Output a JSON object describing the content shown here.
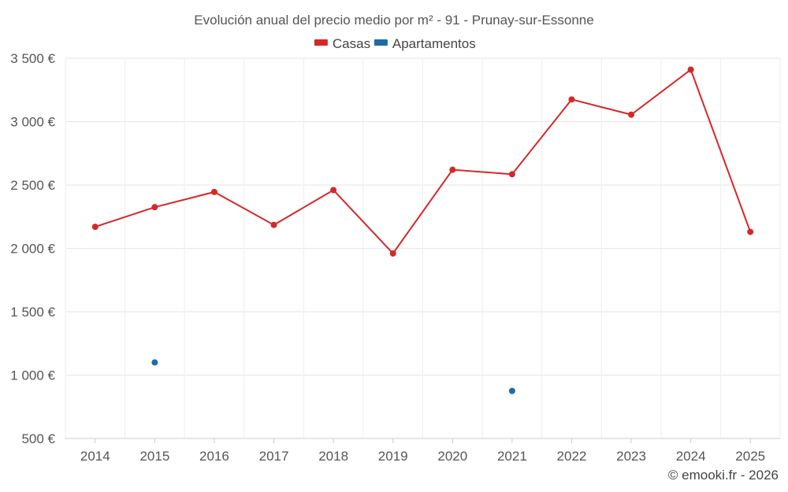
{
  "chart_data": {
    "type": "line",
    "title": "Evolución anual del precio medio por m² - 91 - Prunay-sur-Essonne",
    "categories": [
      "2014",
      "2015",
      "2016",
      "2017",
      "2018",
      "2019",
      "2020",
      "2021",
      "2022",
      "2023",
      "2024",
      "2025"
    ],
    "series": [
      {
        "name": "Casas",
        "color": "#d62728",
        "values": [
          2170,
          2325,
          2445,
          2185,
          2460,
          1960,
          2620,
          2585,
          3175,
          3055,
          3410,
          2130
        ]
      },
      {
        "name": "Apartamentos",
        "color": "#1f6aa5",
        "values": [
          null,
          1100,
          null,
          null,
          null,
          null,
          null,
          875,
          null,
          null,
          null,
          null
        ]
      }
    ],
    "yticks": [
      500,
      1000,
      1500,
      2000,
      2500,
      3000,
      3500
    ],
    "ytick_labels": [
      "500 €",
      "1 000 €",
      "1 500 €",
      "2 000 €",
      "2 500 €",
      "3 000 €",
      "3 500 €"
    ],
    "ylim": [
      500,
      3500
    ],
    "grid": true,
    "legend_position": "top-center"
  },
  "credit": "© emooki.fr - 2026"
}
